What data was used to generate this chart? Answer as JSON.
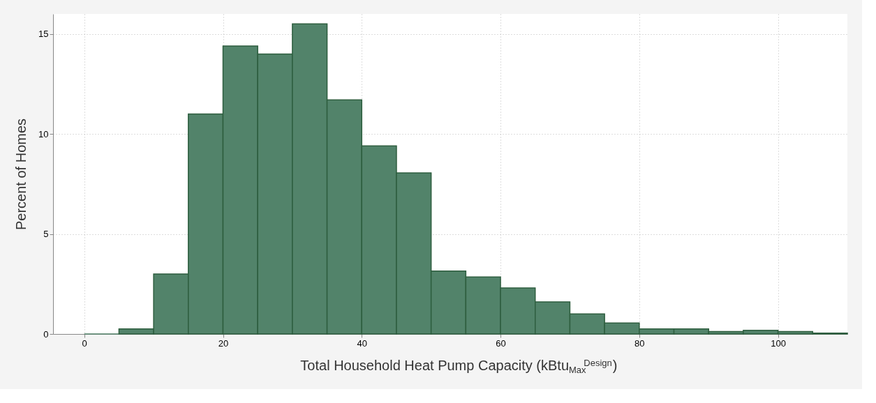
{
  "chart_data": {
    "type": "histogram",
    "xlabel": "Total Household Heat Pump Capacity (kBtu$_{Max}$$^{Design}$)",
    "ylabel": "Percent of Homes",
    "bins": [
      0,
      5,
      10,
      15,
      20,
      25,
      30,
      35,
      40,
      45,
      50,
      55,
      60,
      65,
      70,
      75,
      80,
      85,
      90,
      95,
      100,
      105,
      110
    ],
    "values": [
      0,
      0.25,
      3.0,
      11.0,
      14.4,
      14.0,
      15.5,
      11.7,
      9.4,
      8.05,
      3.15,
      2.85,
      2.3,
      1.6,
      1.0,
      0.55,
      0.25,
      0.25,
      0.12,
      0.18,
      0.12,
      0.04
    ],
    "color": "#52836a",
    "xlim": [
      -4.5,
      110
    ],
    "xticks": [
      0,
      20,
      40,
      60,
      80,
      100
    ],
    "ylim": [
      0,
      16
    ],
    "yticks": [
      0,
      5,
      10,
      15
    ],
    "grid": true
  }
}
